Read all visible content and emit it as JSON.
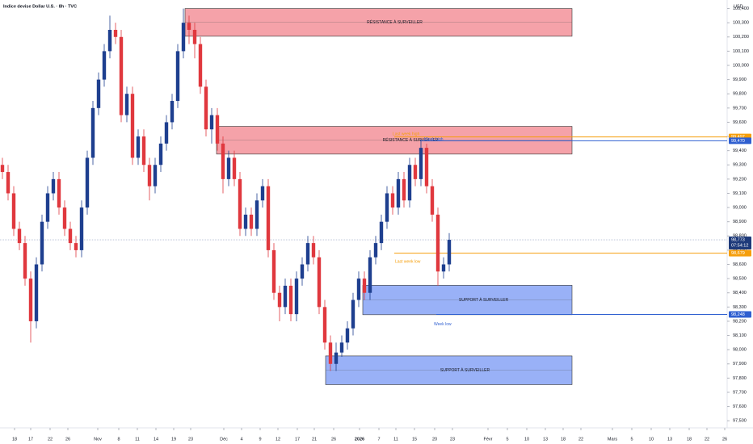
{
  "chart_data": {
    "type": "candlestick",
    "title": "Indice devise Dollar U.S. · 8h · TVC",
    "currency": "USD",
    "up_color": "#1e3f8f",
    "down_color": "#e0383e",
    "xlim": [
      0,
      900
    ],
    "ylim": [
      97450,
      100460
    ],
    "x": [
      3,
      10,
      17,
      24,
      31,
      38,
      45,
      52,
      59,
      66,
      73,
      80,
      87,
      94,
      101,
      108,
      115,
      122,
      129,
      136,
      143,
      150,
      157,
      164,
      171,
      178,
      185,
      192,
      199,
      206,
      213,
      220,
      227,
      234,
      241,
      248,
      255,
      262,
      269,
      276,
      283,
      290,
      297,
      304,
      311,
      318,
      325,
      332,
      339,
      346,
      353,
      360,
      367,
      374,
      381,
      388,
      395,
      402,
      409,
      416,
      423,
      430,
      437,
      444,
      451,
      458,
      465,
      472,
      479,
      486,
      493,
      500,
      507,
      514,
      521,
      528,
      535,
      542,
      549,
      556
    ],
    "open": [
      99300,
      99250,
      99100,
      98850,
      98750,
      98500,
      98200,
      98600,
      98900,
      99100,
      99200,
      99000,
      98850,
      98750,
      98700,
      99000,
      99350,
      99700,
      99900,
      100100,
      100250,
      100200,
      99650,
      99800,
      99350,
      99500,
      99300,
      99150,
      99300,
      99450,
      99600,
      99750,
      100100,
      100300,
      100250,
      100150,
      99850,
      99550,
      99650,
      99450,
      99200,
      99350,
      99200,
      98850,
      98950,
      98850,
      99050,
      99150,
      98700,
      98400,
      98300,
      98450,
      98250,
      98500,
      98600,
      98750,
      98650,
      98300,
      98050,
      97900,
      97980,
      98050,
      98150,
      98350,
      98500,
      98400,
      98650,
      98750,
      98900,
      99100,
      99000,
      99200,
      99050,
      99300,
      99200,
      99420,
      99150,
      98950,
      98550,
      98600
    ],
    "high": [
      99350,
      99300,
      99150,
      98900,
      98800,
      98550,
      98650,
      98950,
      99150,
      99250,
      99250,
      99050,
      98900,
      98800,
      99050,
      99400,
      99750,
      99950,
      100150,
      100350,
      100300,
      100250,
      99850,
      99850,
      99550,
      99550,
      99350,
      99350,
      99500,
      99650,
      99800,
      100150,
      100400,
      100350,
      100300,
      100200,
      99900,
      99700,
      99700,
      99500,
      99400,
      99400,
      99250,
      99000,
      99000,
      99100,
      99200,
      99200,
      98750,
      98450,
      98500,
      98500,
      98550,
      98650,
      98800,
      98800,
      98700,
      98350,
      98100,
      98050,
      98100,
      98200,
      98400,
      98550,
      98550,
      98700,
      98800,
      98950,
      99150,
      99150,
      99250,
      99250,
      99350,
      99350,
      99480,
      99450,
      99200,
      99000,
      98650,
      98820
    ],
    "low": [
      99200,
      99050,
      98800,
      98700,
      98450,
      98050,
      98150,
      98550,
      98850,
      99050,
      98950,
      98800,
      98700,
      98650,
      98650,
      98950,
      99300,
      99650,
      99850,
      100050,
      100150,
      99600,
      99600,
      99300,
      99300,
      99250,
      99050,
      99100,
      99250,
      99400,
      99550,
      99700,
      100050,
      100150,
      100050,
      99800,
      99500,
      99450,
      99400,
      99100,
      99150,
      99150,
      98800,
      98800,
      98800,
      98800,
      99000,
      98650,
      98350,
      98200,
      98250,
      98200,
      98200,
      98450,
      98550,
      98600,
      98250,
      98000,
      97850,
      97850,
      97950,
      98000,
      98100,
      98300,
      98350,
      98350,
      98600,
      98700,
      98850,
      98950,
      98950,
      99000,
      99000,
      99150,
      99150,
      99100,
      98900,
      98450,
      98500,
      98550
    ],
    "close": [
      99250,
      99100,
      98850,
      98750,
      98500,
      98200,
      98600,
      98900,
      99100,
      99200,
      99000,
      98850,
      98750,
      98700,
      99000,
      99350,
      99700,
      99900,
      100100,
      100250,
      100200,
      99650,
      99800,
      99350,
      99500,
      99300,
      99150,
      99300,
      99450,
      99600,
      99750,
      100100,
      100300,
      100250,
      100150,
      99850,
      99550,
      99650,
      99450,
      99200,
      99350,
      99200,
      98850,
      98950,
      98850,
      99050,
      99150,
      98700,
      98400,
      98300,
      98450,
      98250,
      98500,
      98600,
      98750,
      98650,
      98300,
      98050,
      97900,
      97980,
      98050,
      98150,
      98350,
      98500,
      98400,
      98650,
      98750,
      98900,
      99100,
      99000,
      99200,
      99050,
      99300,
      99200,
      99420,
      99150,
      98950,
      98550,
      98600,
      98773
    ],
    "yticks": [
      {
        "value": 97500,
        "label": "97,500"
      },
      {
        "value": 97600,
        "label": "97,600"
      },
      {
        "value": 97700,
        "label": "97,700"
      },
      {
        "value": 97800,
        "label": "97,800"
      },
      {
        "value": 97900,
        "label": "97,900"
      },
      {
        "value": 98000,
        "label": "98,000"
      },
      {
        "value": 98100,
        "label": "98,100"
      },
      {
        "value": 98200,
        "label": "98,200"
      },
      {
        "value": 98300,
        "label": "98,300"
      },
      {
        "value": 98400,
        "label": "98,400"
      },
      {
        "value": 98500,
        "label": "98,500"
      },
      {
        "value": 98600,
        "label": "98,600"
      },
      {
        "value": 98700,
        "label": "98,700"
      },
      {
        "value": 98800,
        "label": "98,800"
      },
      {
        "value": 98900,
        "label": "98,900"
      },
      {
        "value": 99000,
        "label": "99,000"
      },
      {
        "value": 99100,
        "label": "99,100"
      },
      {
        "value": 99200,
        "label": "99,200"
      },
      {
        "value": 99300,
        "label": "99,300"
      },
      {
        "value": 99400,
        "label": "99,400"
      },
      {
        "value": 99500,
        "label": "99,500"
      },
      {
        "value": 99600,
        "label": "99,600"
      },
      {
        "value": 99700,
        "label": "99,700"
      },
      {
        "value": 99800,
        "label": "99,800"
      },
      {
        "value": 99900,
        "label": "99,900"
      },
      {
        "value": 100000,
        "label": "100,000"
      },
      {
        "value": 100100,
        "label": "100,100"
      },
      {
        "value": 100200,
        "label": "100,200"
      },
      {
        "value": 100300,
        "label": "100,300"
      },
      {
        "value": 100400,
        "label": "100,400"
      }
    ],
    "xticks": [
      {
        "value": 18,
        "label": "18"
      },
      {
        "value": 38,
        "label": "17"
      },
      {
        "value": 62,
        "label": "22"
      },
      {
        "value": 84,
        "label": "26"
      },
      {
        "value": 121,
        "label": "Nov"
      },
      {
        "value": 147,
        "label": "8"
      },
      {
        "value": 170,
        "label": "11"
      },
      {
        "value": 193,
        "label": "14"
      },
      {
        "value": 215,
        "label": "19"
      },
      {
        "value": 236,
        "label": "23"
      },
      {
        "value": 277,
        "label": "Déc"
      },
      {
        "value": 299,
        "label": "4"
      },
      {
        "value": 322,
        "label": "9"
      },
      {
        "value": 344,
        "label": "12"
      },
      {
        "value": 368,
        "label": "17"
      },
      {
        "value": 389,
        "label": "21"
      },
      {
        "value": 413,
        "label": "26"
      },
      {
        "value": 445,
        "label": "2026"
      },
      {
        "value": 469,
        "label": "7"
      },
      {
        "value": 490,
        "label": "11"
      },
      {
        "value": 513,
        "label": "15"
      },
      {
        "value": 538,
        "label": "20"
      },
      {
        "value": 560,
        "label": "23"
      },
      {
        "value": 604,
        "label": "Févr"
      },
      {
        "value": 628,
        "label": "5"
      },
      {
        "value": 652,
        "label": "10"
      },
      {
        "value": 675,
        "label": "13"
      },
      {
        "value": 697,
        "label": "18"
      },
      {
        "value": 719,
        "label": "22"
      },
      {
        "value": 758,
        "label": "Mars"
      },
      {
        "value": 782,
        "label": "5"
      },
      {
        "value": 806,
        "label": "10"
      },
      {
        "value": 829,
        "label": "13"
      },
      {
        "value": 853,
        "label": "18"
      },
      {
        "value": 875,
        "label": "22"
      },
      {
        "value": 897,
        "label": "26"
      }
    ],
    "zones": [
      {
        "label": "RÉSISTANCE À SURVEILLER",
        "top": 100400,
        "bottom": 100205,
        "x_start": 229,
        "x_end": 708,
        "color": "#f28b93"
      },
      {
        "label": "RÉSISTANCE À SURVEILLER",
        "top": 99571,
        "bottom": 99376,
        "x_start": 268,
        "x_end": 708,
        "color": "#f28b93"
      },
      {
        "label": "SUPPORT À SURVEILLER",
        "top": 98453,
        "bottom": 98246,
        "x_start": 449,
        "x_end": 708,
        "color": "#7f9ef5"
      },
      {
        "label": "SUPPORT À SURVEILLER",
        "top": 97956,
        "bottom": 97754,
        "x_start": 403,
        "x_end": 708,
        "color": "#7f9ef5"
      }
    ],
    "price_lines": [
      {
        "value": 99497,
        "label": "99,497",
        "color": "#f59e0b",
        "x_start": 488
      },
      {
        "value": 99470,
        "label": "99,470",
        "color": "#2f5fd0",
        "x_start": 520
      },
      {
        "value": 98773,
        "label": "98,773",
        "sublabel": "07:54:12",
        "color": "#1e3a7a",
        "x_start": 0
      },
      {
        "value": 98679,
        "label": "98,679",
        "color": "#f59e0b",
        "x_start": 488
      },
      {
        "value": 98248,
        "label": "98,248",
        "color": "#2f5fd0",
        "x_start": 540
      }
    ],
    "annotations": [
      {
        "text": "Last week high",
        "x": 486,
        "value": 99515,
        "color": "#f59e0b"
      },
      {
        "text": "Week high",
        "x": 525,
        "value": 99480,
        "color": "#2f5fd0"
      },
      {
        "text": "Last week low",
        "x": 489,
        "value": 98620,
        "color": "#f59e0b"
      },
      {
        "text": "Week low",
        "x": 537,
        "value": 98180,
        "color": "#2f5fd0"
      }
    ]
  }
}
